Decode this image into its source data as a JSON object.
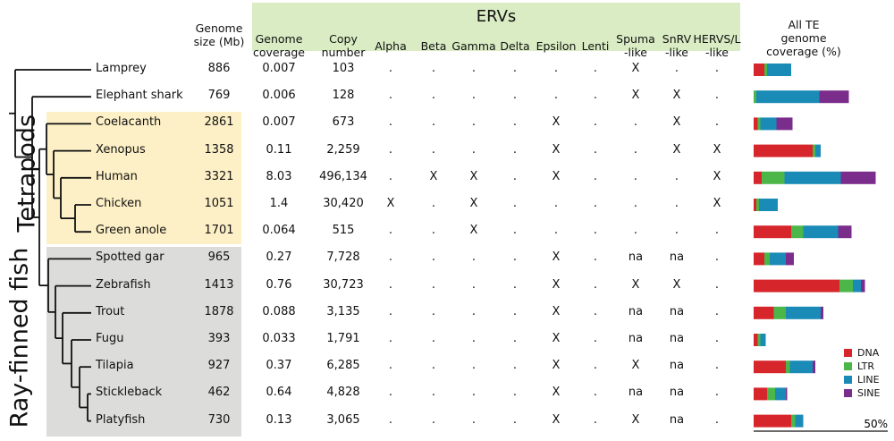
{
  "group_labels": {
    "tetrapods": "Tetrapods",
    "ray_finned": "Ray-finned fish"
  },
  "headers": {
    "genome_size": [
      "Genome",
      "size (Mb)"
    ],
    "erv_title": "ERVs",
    "genome_coverage": [
      "Genome",
      "coverage"
    ],
    "copy_number": [
      "Copy",
      "number"
    ],
    "erv_columns": [
      [
        "Alpha"
      ],
      [
        "Beta"
      ],
      [
        "Gamma"
      ],
      [
        "Delta"
      ],
      [
        "Epsilon"
      ],
      [
        "Lenti"
      ],
      [
        "Spuma",
        "-like"
      ],
      [
        "SnRV",
        "-like"
      ],
      [
        "HERVS/L",
        "-like"
      ]
    ],
    "all_te": [
      "All TE",
      "genome",
      "coverage (%)"
    ]
  },
  "rows": [
    {
      "species": "Lamprey",
      "size": "886",
      "coverage": "0.007",
      "copies": "103",
      "ervs": [
        ".",
        ".",
        ".",
        ".",
        ".",
        ".",
        "X",
        ".",
        "."
      ],
      "te": [
        4,
        1,
        9,
        0
      ]
    },
    {
      "species": "Elephant shark",
      "size": "769",
      "coverage": "0.006",
      "copies": "128",
      "ervs": [
        ".",
        ".",
        ".",
        ".",
        ".",
        ".",
        "X",
        "X",
        "."
      ],
      "te": [
        0,
        1,
        23.5,
        11
      ]
    },
    {
      "species": "Coelacanth",
      "size": "2861",
      "coverage": "0.007",
      "copies": "673",
      "ervs": [
        ".",
        ".",
        ".",
        ".",
        "X",
        ".",
        ".",
        "X",
        "."
      ],
      "te": [
        1.5,
        1,
        6,
        6
      ]
    },
    {
      "species": "Xenopus",
      "size": "1358",
      "coverage": "0.11",
      "copies": "2,259",
      "ervs": [
        ".",
        ".",
        ".",
        ".",
        "X",
        ".",
        ".",
        "X",
        "X"
      ],
      "te": [
        22,
        1,
        2,
        0
      ]
    },
    {
      "species": "Human",
      "size": "3321",
      "coverage": "8.03",
      "copies": "496,134",
      "ervs": [
        ".",
        "X",
        "X",
        ".",
        "X",
        ".",
        ".",
        ".",
        "X"
      ],
      "te": [
        3,
        8.5,
        21,
        13
      ]
    },
    {
      "species": "Chicken",
      "size": "1051",
      "coverage": "1.4",
      "copies": "30,420",
      "ervs": [
        "X",
        ".",
        "X",
        ".",
        ".",
        ".",
        ".",
        ".",
        "X"
      ],
      "te": [
        1,
        1,
        7,
        0
      ]
    },
    {
      "species": "Green anole",
      "size": "1701",
      "coverage": "0.064",
      "copies": "515",
      "ervs": [
        ".",
        ".",
        "X",
        ".",
        ".",
        ".",
        ".",
        ".",
        "."
      ],
      "te": [
        14,
        4.5,
        13,
        5
      ]
    },
    {
      "species": "Spotted gar",
      "size": "965",
      "coverage": "0.27",
      "copies": "7,728",
      "ervs": [
        ".",
        ".",
        ".",
        ".",
        "X",
        ".",
        "na",
        "na",
        "."
      ],
      "te": [
        4,
        2,
        6,
        3
      ]
    },
    {
      "species": "Zebrafish",
      "size": "1413",
      "coverage": "0.76",
      "copies": "30,723",
      "ervs": [
        ".",
        ".",
        ".",
        ".",
        "X",
        ".",
        "X",
        "X",
        "."
      ],
      "te": [
        32,
        5,
        3,
        1.5
      ]
    },
    {
      "species": "Trout",
      "size": "1878",
      "coverage": "0.088",
      "copies": "3,135",
      "ervs": [
        ".",
        ".",
        ".",
        ".",
        "X",
        ".",
        "na",
        "na",
        "."
      ],
      "te": [
        7.5,
        4.5,
        13,
        1
      ]
    },
    {
      "species": "Fugu",
      "size": "393",
      "coverage": "0.033",
      "copies": "1,791",
      "ervs": [
        ".",
        ".",
        ".",
        ".",
        "X",
        ".",
        "na",
        "na",
        "."
      ],
      "te": [
        1.5,
        1,
        2,
        0
      ]
    },
    {
      "species": "Tilapia",
      "size": "927",
      "coverage": "0.37",
      "copies": "6,285",
      "ervs": [
        ".",
        ".",
        ".",
        ".",
        "X",
        ".",
        "X",
        "na",
        "."
      ],
      "te": [
        12,
        1.5,
        8.5,
        1
      ]
    },
    {
      "species": "Stickleback",
      "size": "462",
      "coverage": "0.64",
      "copies": "4,828",
      "ervs": [
        ".",
        ".",
        ".",
        ".",
        "X",
        ".",
        "na",
        "na",
        "."
      ],
      "te": [
        5,
        3,
        4,
        0.5
      ]
    },
    {
      "species": "Platyfish",
      "size": "730",
      "coverage": "0.13",
      "copies": "3,065",
      "ervs": [
        ".",
        ".",
        ".",
        ".",
        "X",
        ".",
        "X",
        "na",
        "."
      ],
      "te": [
        14,
        1.5,
        3,
        0
      ]
    }
  ],
  "legend": [
    {
      "label": "DNA",
      "color": "#d7262b"
    },
    {
      "label": "LTR",
      "color": "#4cb748"
    },
    {
      "label": "LINE",
      "color": "#1a8bb7"
    },
    {
      "label": "SINE",
      "color": "#7b2d8c"
    }
  ],
  "scale_label": "50%",
  "scale_percent": 50
}
